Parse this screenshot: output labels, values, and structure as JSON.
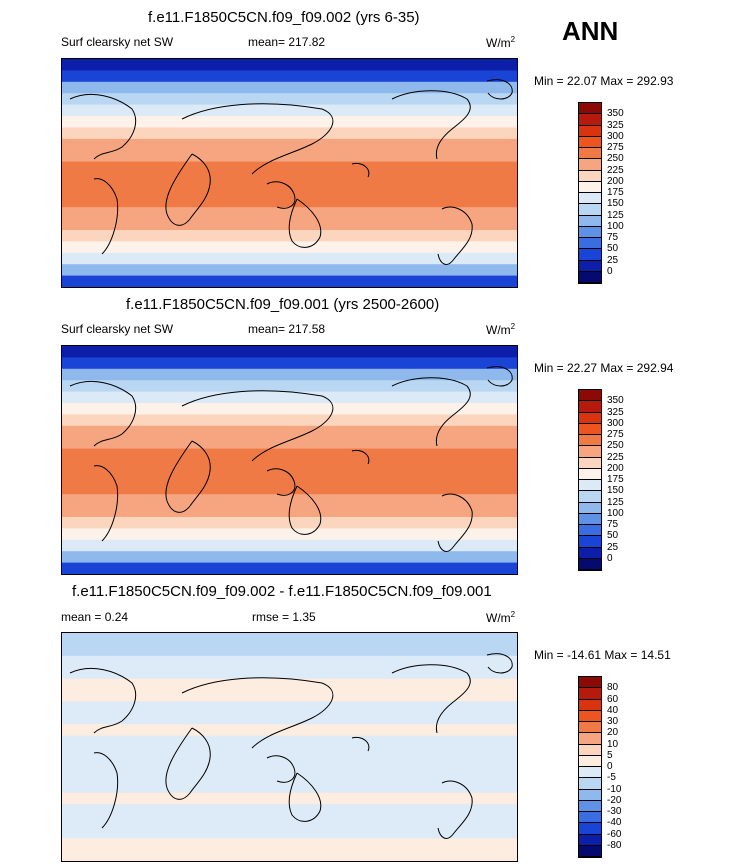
{
  "season_label": "ANN",
  "units_prefix": "W/m",
  "units_sup": "2",
  "chart_data": [
    {
      "type": "heatmap",
      "title": "f.e11.F1850C5CN.f09_f09.002 (yrs 6-35)",
      "left_label": "Surf clearsky net SW",
      "center_label": "mean= 217.82",
      "minmax_label": "Min =  22.07 Max = 292.93",
      "min": 22.07,
      "max": 292.93,
      "mean": 217.82,
      "levels": [
        "350",
        "325",
        "300",
        "275",
        "250",
        "225",
        "200",
        "175",
        "150",
        "125",
        "100",
        "75",
        "50",
        "25",
        "0"
      ],
      "colors": [
        "#8c0a06",
        "#b51a0c",
        "#d8340f",
        "#ec5420",
        "#f07a46",
        "#f5a57f",
        "#fbd5be",
        "#fdf2ea",
        "#dceaf8",
        "#b9d6f2",
        "#8fb9ec",
        "#5f92e6",
        "#3a6ee0",
        "#1a44d6",
        "#0d1fa8",
        "#040a6e"
      ],
      "zonal_profile_levels": [
        1,
        2,
        5,
        6,
        7,
        8,
        9,
        10,
        10,
        11,
        11,
        11,
        11,
        10,
        10,
        9,
        8,
        7,
        5,
        2
      ]
    },
    {
      "type": "heatmap",
      "title": "f.e11.F1850C5CN.f09_f09.001 (yrs 2500-2600)",
      "left_label": "Surf clearsky net SW",
      "center_label": "mean= 217.58",
      "minmax_label": "Min =  22.27 Max = 292.94",
      "min": 22.27,
      "max": 292.94,
      "mean": 217.58,
      "levels": [
        "350",
        "325",
        "300",
        "275",
        "250",
        "225",
        "200",
        "175",
        "150",
        "125",
        "100",
        "75",
        "50",
        "25",
        "0"
      ],
      "colors": [
        "#8c0a06",
        "#b51a0c",
        "#d8340f",
        "#ec5420",
        "#f07a46",
        "#f5a57f",
        "#fbd5be",
        "#fdf2ea",
        "#dceaf8",
        "#b9d6f2",
        "#8fb9ec",
        "#5f92e6",
        "#3a6ee0",
        "#1a44d6",
        "#0d1fa8",
        "#040a6e"
      ],
      "zonal_profile_levels": [
        1,
        2,
        5,
        6,
        7,
        8,
        9,
        10,
        10,
        11,
        11,
        11,
        11,
        10,
        10,
        9,
        8,
        7,
        5,
        2
      ]
    },
    {
      "type": "heatmap",
      "title": "f.e11.F1850C5CN.f09_f09.002 - f.e11.F1850C5CN.f09_f09.001",
      "left_label": "mean =   0.24",
      "center_label": "rmse =   1.35",
      "minmax_label": "Min = -14.61 Max =  14.51",
      "min": -14.61,
      "max": 14.51,
      "mean": 0.24,
      "rmse": 1.35,
      "levels": [
        "80",
        "60",
        "40",
        "30",
        "20",
        "10",
        "5",
        "0",
        "-5",
        "-10",
        "-20",
        "-30",
        "-40",
        "-60",
        "-80"
      ],
      "colors": [
        "#8c0a06",
        "#b51a0c",
        "#d8340f",
        "#ec5420",
        "#f07a46",
        "#f5a57f",
        "#fbd5be",
        "#fdece0",
        "#ddeaf8",
        "#b9d6f2",
        "#8fb9ec",
        "#5f92e6",
        "#3a6ee0",
        "#1a44d6",
        "#0d1fa8",
        "#040a6e"
      ],
      "zonal_profile_levels": [
        6,
        6,
        7,
        7,
        8,
        8,
        7,
        7,
        8,
        7,
        7,
        7,
        7,
        7,
        8,
        7,
        7,
        7,
        8,
        8
      ]
    }
  ]
}
